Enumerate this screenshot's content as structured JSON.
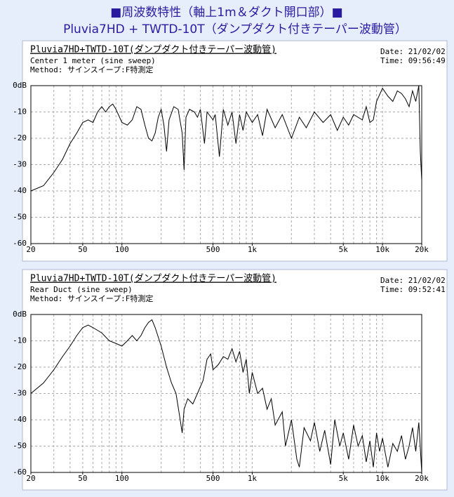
{
  "header": {
    "line1": "■周波数特性（軸上1m＆ダクト開口部）■",
    "line2": "Pluvia7HD + TWTD-10T（ダンプダクト付きテーパー波動管）"
  },
  "chart_data": [
    {
      "type": "line",
      "title": "Pluvia7HD+TWTD-10T(ダンプダクト付きテーパー波動管)",
      "subtitle": "Center 1 meter (sine sweep)",
      "method": "Method:  サインスイープ:F特測定",
      "date": "Date: 21/02/02",
      "time": "Time: 09:56:49",
      "log_x": true,
      "xlim": [
        20,
        20000
      ],
      "ylim": [
        -60,
        0
      ],
      "xticks": [
        20,
        50,
        100,
        500,
        {
          "value": 1000,
          "label": "1k"
        },
        {
          "value": 5000,
          "label": "5k"
        },
        {
          "value": 10000,
          "label": "10k"
        },
        {
          "value": 20000,
          "label": "20k"
        }
      ],
      "yticks": [
        {
          "value": 0,
          "label": "0dB"
        },
        -10,
        -20,
        -30,
        -40,
        -50,
        -60
      ],
      "xgrid": [
        30,
        40,
        50,
        60,
        70,
        80,
        90,
        100,
        200,
        300,
        400,
        500,
        600,
        700,
        800,
        900,
        1000,
        2000,
        3000,
        4000,
        5000,
        6000,
        7000,
        8000,
        9000,
        10000
      ],
      "x": [
        20,
        25,
        30,
        35,
        40,
        45,
        50,
        55,
        60,
        65,
        70,
        75,
        80,
        85,
        90,
        100,
        110,
        120,
        130,
        140,
        150,
        160,
        170,
        180,
        190,
        200,
        210,
        220,
        230,
        250,
        270,
        290,
        300,
        310,
        330,
        360,
        380,
        400,
        430,
        450,
        500,
        520,
        560,
        600,
        650,
        700,
        750,
        800,
        850,
        900,
        1000,
        1100,
        1200,
        1300,
        1500,
        1700,
        2000,
        2300,
        2600,
        3000,
        3500,
        4000,
        4500,
        5000,
        5500,
        6000,
        7000,
        7500,
        8000,
        8500,
        9000,
        10000,
        11000,
        12000,
        13000,
        14000,
        15000,
        16000,
        17000,
        18000,
        19000,
        19500,
        20000
      ],
      "series": [
        {
          "color": "#000000",
          "values": [
            -40,
            -38,
            -33,
            -28,
            -22,
            -18,
            -14,
            -13,
            -14,
            -10,
            -8,
            -10,
            -8,
            -7,
            -9,
            -14,
            -15,
            -13,
            -8,
            -9,
            -15,
            -20,
            -21,
            -18,
            -12,
            -9,
            -15,
            -25,
            -13,
            -8,
            -9,
            -18,
            -32,
            -12,
            -9,
            -10,
            -12,
            -9,
            -22,
            -10,
            -13,
            -11,
            -27,
            -9,
            -15,
            -10,
            -22,
            -11,
            -17,
            -10,
            -14,
            -11,
            -19,
            -9,
            -16,
            -11,
            -20,
            -12,
            -16,
            -10,
            -14,
            -11,
            -17,
            -12,
            -15,
            -11,
            -13,
            -8,
            -14,
            -13,
            -6,
            -1,
            -4,
            -6,
            -2,
            -3,
            -5,
            -8,
            -2,
            -6,
            0,
            -25,
            -36
          ]
        }
      ]
    },
    {
      "type": "line",
      "title": "Pluvia7HD+TWTD-10T(ダンプダクト付きテーパー波動管)",
      "subtitle": "Rear Duct (sine sweep)",
      "method": "Method:  サインスイープ:F特測定",
      "date": "Date: 21/02/02",
      "time": "Time: 09:52:41",
      "log_x": true,
      "xlim": [
        20,
        20000
      ],
      "ylim": [
        -60,
        0
      ],
      "xticks": [
        20,
        50,
        100,
        500,
        {
          "value": 1000,
          "label": "1k"
        },
        {
          "value": 5000,
          "label": "5k"
        },
        {
          "value": 10000,
          "label": "10k"
        },
        {
          "value": 20000,
          "label": "20k"
        }
      ],
      "yticks": [
        {
          "value": 0,
          "label": "0dB"
        },
        -10,
        -20,
        -30,
        -40,
        -50,
        -60
      ],
      "xgrid": [
        30,
        40,
        50,
        60,
        70,
        80,
        90,
        100,
        200,
        300,
        400,
        500,
        600,
        700,
        800,
        900,
        1000,
        2000,
        3000,
        4000,
        5000,
        6000,
        7000,
        8000,
        9000,
        10000
      ],
      "x": [
        20,
        25,
        30,
        35,
        40,
        45,
        50,
        55,
        60,
        70,
        80,
        90,
        100,
        110,
        120,
        130,
        140,
        150,
        160,
        170,
        180,
        200,
        220,
        240,
        260,
        280,
        290,
        300,
        320,
        350,
        380,
        420,
        450,
        480,
        500,
        550,
        600,
        650,
        700,
        750,
        800,
        850,
        900,
        950,
        1000,
        1100,
        1200,
        1300,
        1400,
        1500,
        1700,
        1800,
        2000,
        2200,
        2300,
        2500,
        2800,
        3000,
        3300,
        3600,
        4000,
        4300,
        4700,
        5000,
        5500,
        6000,
        6500,
        7000,
        7500,
        8000,
        8500,
        9000,
        9500,
        10000,
        11000,
        12000,
        13000,
        14000,
        15000,
        16000,
        17000,
        18000,
        19000,
        20000
      ],
      "series": [
        {
          "color": "#000000",
          "values": [
            -30,
            -26,
            -21,
            -16,
            -12,
            -8,
            -5,
            -4,
            -5,
            -7,
            -10,
            -11,
            -12,
            -10,
            -8,
            -10,
            -8,
            -5,
            -3,
            -2,
            -5,
            -12,
            -20,
            -26,
            -30,
            -40,
            -45,
            -36,
            -32,
            -34,
            -30,
            -25,
            -17,
            -15,
            -21,
            -19,
            -16,
            -17,
            -13,
            -18,
            -14,
            -22,
            -17,
            -30,
            -22,
            -30,
            -28,
            -36,
            -32,
            -42,
            -37,
            -50,
            -40,
            -55,
            -58,
            -43,
            -48,
            -41,
            -52,
            -44,
            -57,
            -40,
            -50,
            -45,
            -55,
            -42,
            -50,
            -46,
            -56,
            -48,
            -58,
            -45,
            -52,
            -47,
            -58,
            -49,
            -52,
            -46,
            -55,
            -50,
            -43,
            -52,
            -41,
            -60
          ]
        }
      ]
    }
  ]
}
